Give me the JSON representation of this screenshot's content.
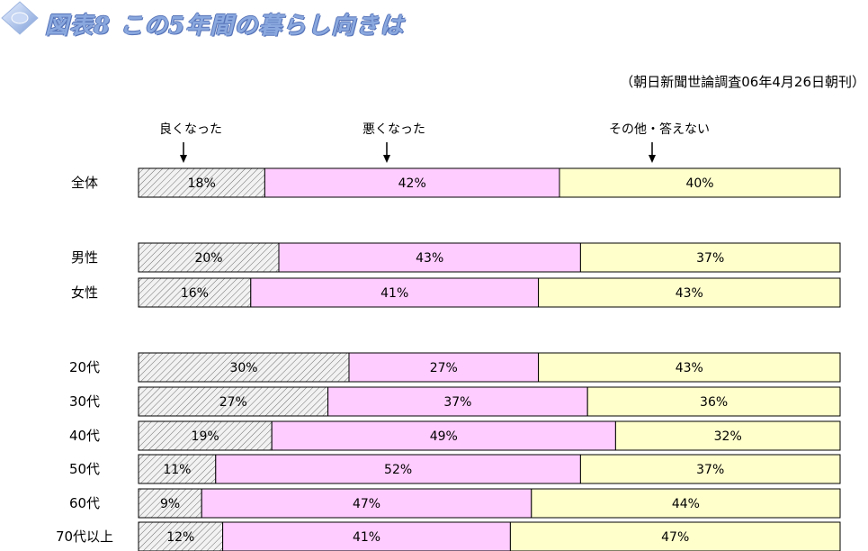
{
  "header": {
    "title": "図表8 この5年間の暮らし向きは",
    "source": "（朝日新聞世論調査06年4月26日朝刊）"
  },
  "icons": {
    "title_icon": "diamond-icon",
    "arrow_icon": "down-arrow-icon"
  },
  "colors": {
    "good": "hatched gray",
    "bad": "#ffccff",
    "other": "#ffffcc",
    "title": "#8aa8de"
  },
  "chart_data": {
    "type": "bar",
    "orientation": "horizontal",
    "stacked": true,
    "normalized_to": 100,
    "unit": "%",
    "legend_position": "top",
    "legend": [
      "良くなった",
      "悪くなった",
      "その他・答えない"
    ],
    "categories": [
      "全体",
      "男性",
      "女性",
      "20代",
      "30代",
      "40代",
      "50代",
      "60代",
      "70代以上"
    ],
    "groups": [
      [
        "全体"
      ],
      [
        "男性",
        "女性"
      ],
      [
        "20代",
        "30代",
        "40代",
        "50代",
        "60代",
        "70代以上"
      ]
    ],
    "series": [
      {
        "name": "良くなった",
        "values": [
          18,
          20,
          16,
          30,
          27,
          19,
          11,
          9,
          12
        ]
      },
      {
        "name": "悪くなった",
        "values": [
          42,
          43,
          41,
          27,
          37,
          49,
          52,
          47,
          41
        ]
      },
      {
        "name": "その他・答えない",
        "values": [
          40,
          37,
          43,
          43,
          36,
          32,
          37,
          44,
          47
        ]
      }
    ]
  }
}
